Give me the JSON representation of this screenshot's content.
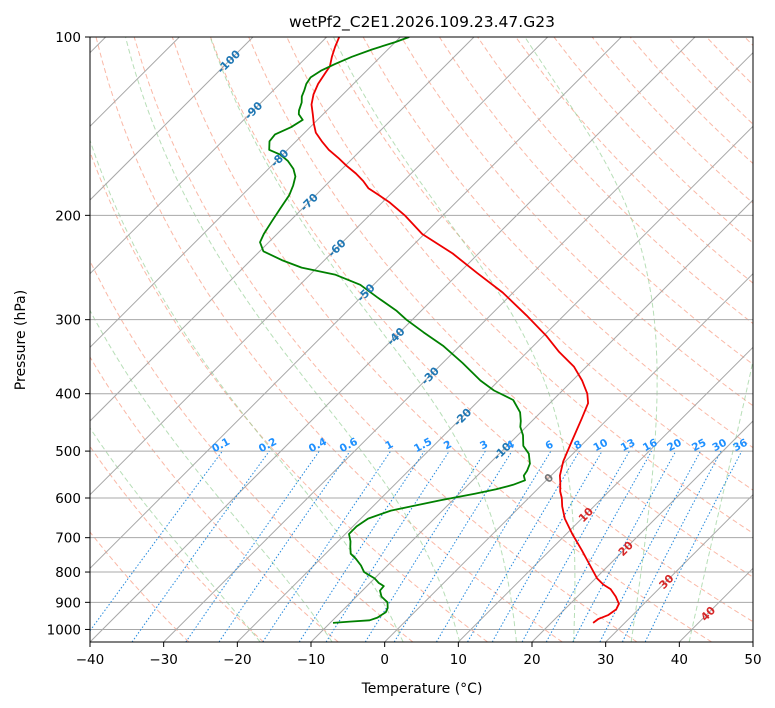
{
  "chart_data": {
    "type": "skew-t",
    "title": "wetPf2_C2E1.2026.109.23.47.G23",
    "xlabel": "Temperature (°C)",
    "ylabel": "Pressure (hPa)",
    "xlim": [
      -40,
      50
    ],
    "ylim_hpa": [
      1050,
      100
    ],
    "x_ticks": [
      -40,
      -30,
      -20,
      -10,
      0,
      10,
      20,
      30,
      40,
      50
    ],
    "y_ticks": [
      100,
      200,
      300,
      400,
      500,
      600,
      700,
      800,
      900,
      1000
    ],
    "skew_deg": 45,
    "colors": {
      "temperature": "#ee0000",
      "dewpoint": "#008000",
      "isotherm": "#a8a8a8",
      "isobar": "#a8a8a8",
      "dry_adiabat": "#f8a088",
      "moist_adiabat": "#98d098",
      "mixing_ratio": "#2288dd",
      "label_blue": "#1f77b4",
      "label_red": "#d62728",
      "label_grey": "#777777",
      "label_mr": "#1e90ff"
    },
    "series": [
      {
        "name": "Temperature",
        "points": [
          [
            25.7,
            975
          ],
          [
            25.9,
            960
          ],
          [
            26.7,
            945
          ],
          [
            27.0,
            925
          ],
          [
            26.6,
            905
          ],
          [
            25.2,
            880
          ],
          [
            23.5,
            855
          ],
          [
            21.9,
            840
          ],
          [
            20.2,
            820
          ],
          [
            17.5,
            780
          ],
          [
            14.3,
            735
          ],
          [
            10.8,
            690
          ],
          [
            7.7,
            650
          ],
          [
            5.7,
            620
          ],
          [
            4.5,
            600
          ],
          [
            3.4,
            585
          ],
          [
            2.2,
            565
          ],
          [
            1.2,
            550
          ],
          [
            -0.3,
            520
          ],
          [
            -1.9,
            480
          ],
          [
            -3.6,
            440
          ],
          [
            -4.8,
            415
          ],
          [
            -6.2,
            400
          ],
          [
            -8.7,
            380
          ],
          [
            -11.7,
            360
          ],
          [
            -15.7,
            340
          ],
          [
            -19.5,
            320
          ],
          [
            -25.1,
            295
          ],
          [
            -31.4,
            270
          ],
          [
            -37.6,
            250
          ],
          [
            -43.5,
            232
          ],
          [
            -50.3,
            215
          ],
          [
            -55.2,
            200
          ],
          [
            -59.1,
            190
          ],
          [
            -61.4,
            185
          ],
          [
            -63.8,
            180
          ],
          [
            -65.5,
            175
          ],
          [
            -67.5,
            170
          ],
          [
            -69.8,
            165
          ],
          [
            -72.0,
            160
          ],
          [
            -74.4,
            155
          ],
          [
            -76.5,
            150
          ],
          [
            -78.5,
            145
          ],
          [
            -80.0,
            140
          ],
          [
            -81.4,
            135
          ],
          [
            -82.9,
            130
          ],
          [
            -84.0,
            125
          ],
          [
            -84.8,
            120
          ],
          [
            -85.3,
            115
          ],
          [
            -85.6,
            112
          ],
          [
            -86.6,
            108
          ],
          [
            -87.5,
            104
          ],
          [
            -88.3,
            100
          ]
        ]
      },
      {
        "name": "Dewpoint",
        "points": [
          [
            -9.6,
            975
          ],
          [
            -7.5,
            970
          ],
          [
            -5.0,
            965
          ],
          [
            -4.3,
            955
          ],
          [
            -4.1,
            945
          ],
          [
            -3.9,
            935
          ],
          [
            -4.2,
            920
          ],
          [
            -5.0,
            900
          ],
          [
            -6.6,
            880
          ],
          [
            -7.6,
            860
          ],
          [
            -7.7,
            845
          ],
          [
            -8.8,
            835
          ],
          [
            -10.0,
            820
          ],
          [
            -12.3,
            800
          ],
          [
            -13.6,
            780
          ],
          [
            -15.2,
            760
          ],
          [
            -16.6,
            745
          ],
          [
            -17.6,
            725
          ],
          [
            -18.3,
            710
          ],
          [
            -19.5,
            690
          ],
          [
            -19.5,
            670
          ],
          [
            -19.0,
            650
          ],
          [
            -17.0,
            630
          ],
          [
            -14.8,
            620
          ],
          [
            -11.6,
            605
          ],
          [
            -7.9,
            590
          ],
          [
            -5.6,
            580
          ],
          [
            -3.9,
            570
          ],
          [
            -2.9,
            560
          ],
          [
            -3.3,
            555
          ],
          [
            -3.7,
            550
          ],
          [
            -3.9,
            540
          ],
          [
            -4.5,
            525
          ],
          [
            -6.0,
            505
          ],
          [
            -7.8,
            490
          ],
          [
            -9.3,
            470
          ],
          [
            -10.8,
            455
          ],
          [
            -11.5,
            445
          ],
          [
            -12.8,
            430
          ],
          [
            -15.4,
            410
          ],
          [
            -19.3,
            395
          ],
          [
            -22.5,
            380
          ],
          [
            -27.3,
            355
          ],
          [
            -32.3,
            332
          ],
          [
            -36.8,
            315
          ],
          [
            -40.8,
            300
          ],
          [
            -43.3,
            290
          ],
          [
            -47.8,
            275
          ],
          [
            -51.8,
            262
          ],
          [
            -56.5,
            252
          ],
          [
            -62.1,
            245
          ],
          [
            -65.8,
            238
          ],
          [
            -69.5,
            230
          ],
          [
            -71.2,
            222
          ],
          [
            -71.8,
            215
          ],
          [
            -72.4,
            205
          ],
          [
            -73.0,
            195
          ],
          [
            -73.6,
            185
          ],
          [
            -74.4,
            178
          ],
          [
            -75.3,
            172
          ],
          [
            -76.6,
            167
          ],
          [
            -78.4,
            162
          ],
          [
            -80.3,
            158
          ],
          [
            -82.5,
            155
          ],
          [
            -83.6,
            150
          ],
          [
            -83.8,
            146
          ],
          [
            -82.6,
            142
          ],
          [
            -82.0,
            138
          ],
          [
            -83.3,
            135
          ],
          [
            -83.8,
            133
          ],
          [
            -84.5,
            129
          ],
          [
            -85.3,
            126
          ],
          [
            -85.8,
            123
          ],
          [
            -86.4,
            120
          ],
          [
            -86.7,
            117
          ],
          [
            -86.2,
            114
          ],
          [
            -85.2,
            111
          ],
          [
            -83.9,
            108
          ],
          [
            -82.2,
            105
          ],
          [
            -80.0,
            102
          ],
          [
            -78.8,
            100
          ]
        ]
      }
    ],
    "isotherm_labels": [
      {
        "text": "-100",
        "value": -100,
        "pressure": 110
      },
      {
        "text": "-90",
        "value": -90,
        "pressure": 133
      },
      {
        "text": "-80",
        "value": -80,
        "pressure": 160
      },
      {
        "text": "-70",
        "value": -70,
        "pressure": 190
      },
      {
        "text": "-60",
        "value": -60,
        "pressure": 227
      },
      {
        "text": "-50",
        "value": -50,
        "pressure": 270
      },
      {
        "text": "-40",
        "value": -40,
        "pressure": 320
      },
      {
        "text": "-30",
        "value": -30,
        "pressure": 373
      },
      {
        "text": "-20",
        "value": -20,
        "pressure": 438
      },
      {
        "text": "-10",
        "value": -10,
        "pressure": 500
      },
      {
        "text": "0",
        "value": 0,
        "pressure": 555
      },
      {
        "text": "10",
        "value": 10,
        "pressure": 640
      },
      {
        "text": "20",
        "value": 20,
        "pressure": 730
      },
      {
        "text": "30",
        "value": 30,
        "pressure": 830
      },
      {
        "text": "40",
        "value": 40,
        "pressure": 940
      }
    ],
    "mixing_ratio_g_per_kg": [
      0.1,
      0.2,
      0.4,
      0.6,
      1,
      1.5,
      2,
      3,
      4,
      6,
      8,
      10,
      13,
      16,
      20,
      25,
      30,
      36
    ],
    "mixing_ratio_labels": [
      "0.1",
      "0.2",
      "0.4",
      "0.6",
      "1",
      "1.5",
      "2",
      "3",
      "4",
      "6",
      "8",
      "10",
      "13",
      "16",
      "20",
      "25",
      "30",
      "36"
    ],
    "mixing_ratio_top_hpa": 500,
    "dry_adiabats_theta_c": [
      -30,
      -20,
      -10,
      0,
      10,
      20,
      30,
      40,
      50,
      60,
      70,
      80,
      90,
      100,
      110,
      120,
      130,
      140,
      150,
      160,
      170,
      180,
      190,
      200
    ],
    "moist_adiabats_c": [
      -20,
      -10,
      0,
      8,
      16,
      24,
      32,
      40
    ]
  }
}
